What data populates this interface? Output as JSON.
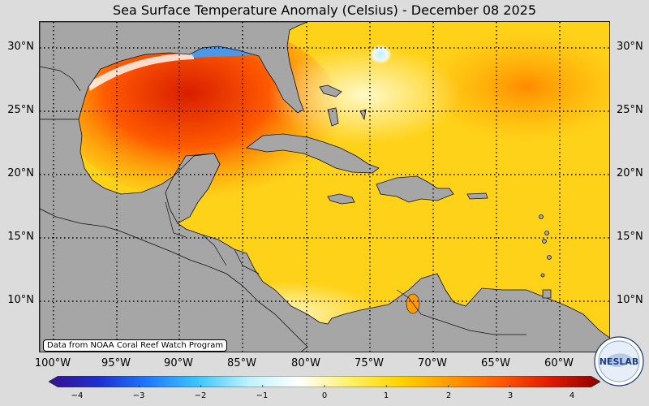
{
  "title": "Sea Surface Temperature Anomaly (Celsius) - December 08 2025",
  "source_note": "Data from NOAA Coral Reef Watch Program",
  "lat_labels": [
    "30°N",
    "25°N",
    "20°N",
    "15°N",
    "10°N"
  ],
  "lon_labels": [
    "100°W",
    "95°W",
    "90°W",
    "85°W",
    "80°W",
    "75°W",
    "70°W",
    "65°W",
    "60°W"
  ],
  "colorbar": {
    "min": -4,
    "max": 4,
    "tick_labels": [
      "−4",
      "−3",
      "−2",
      "−1",
      "0",
      "1",
      "2",
      "3",
      "4"
    ],
    "colors": [
      "#3a0f8f",
      "#1d2fd0",
      "#1f7bff",
      "#3fc7ff",
      "#bff4ff",
      "#ffffff",
      "#fff16a",
      "#ffd400",
      "#ff9a00",
      "#ff5a00",
      "#e01a00",
      "#8c0000"
    ]
  },
  "logo": {
    "text": "NESLAB",
    "icon": "neslab-logo-icon"
  },
  "colors": {
    "land": "#a6a6a6",
    "background": "#dcdcdc",
    "grid": "#000000"
  }
}
